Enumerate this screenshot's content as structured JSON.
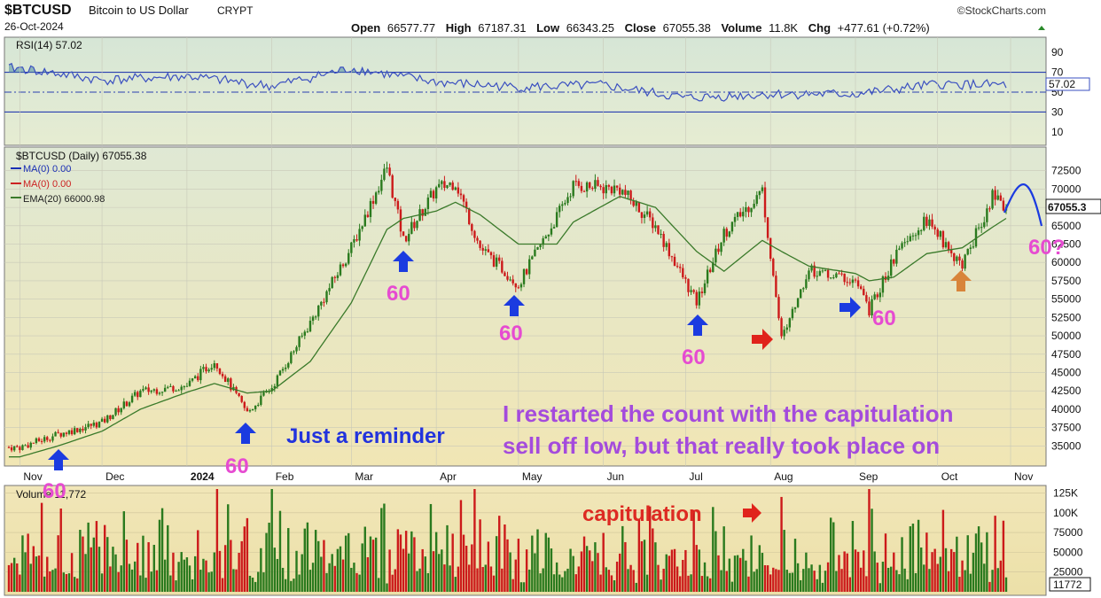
{
  "header": {
    "symbol": "$BTCUSD",
    "name": "Bitcoin to US Dollar",
    "exchange": "CRYPT",
    "date": "26-Oct-2024",
    "brand": "©StockCharts.com",
    "ohlc": [
      {
        "label": "Open",
        "value": "66577.77"
      },
      {
        "label": "High",
        "value": "67187.31"
      },
      {
        "label": "Low",
        "value": "66343.25"
      },
      {
        "label": "Close",
        "value": "67055.38"
      },
      {
        "label": "Volume",
        "value": "11.8K"
      },
      {
        "label": "Chg",
        "value": "+477.61 (+0.72%)"
      }
    ]
  },
  "chart_data": [
    {
      "type": "line",
      "title": "RSI(14) 57.02",
      "current": "57.02",
      "ylim": [
        0,
        100
      ],
      "ticks": [
        "90",
        "70",
        "50",
        "30",
        "10"
      ],
      "levels": [
        70,
        50,
        30
      ],
      "x": [
        "Nov 2023",
        "Dec 2023",
        "Jan 2024",
        "Feb 2024",
        "Mar 2024",
        "Apr 2024",
        "May 2024",
        "Jun 2024",
        "Jul 2024",
        "Aug 2024",
        "Sep 2024",
        "Oct 2024",
        "Nov 2024"
      ],
      "series": [
        {
          "name": "RSI(14)",
          "values": [
            74,
            62,
            66,
            56,
            74,
            60,
            55,
            57,
            44,
            48,
            48,
            58,
            57
          ]
        }
      ]
    },
    {
      "type": "line",
      "title": "$BTCUSD (Daily) 67055.38",
      "legend": [
        "MA(0) 0.00",
        "MA(0) 0.00",
        "EMA(20) 66000.98"
      ],
      "legend_colors": [
        "#1a2fb4",
        "#cc2222",
        "#3a7a2a"
      ],
      "current": "67055.3",
      "ylim": [
        32500,
        75000
      ],
      "ticks": [
        "72500",
        "70000",
        "67500",
        "65000",
        "62500",
        "60000",
        "57500",
        "55000",
        "52500",
        "50000",
        "47500",
        "45000",
        "42500",
        "40000",
        "37500",
        "35000"
      ],
      "x_labels": [
        "Nov",
        "Dec",
        "2024",
        "Feb",
        "Mar",
        "Apr",
        "May",
        "Jun",
        "Jul",
        "Aug",
        "Sep",
        "Oct",
        "Nov"
      ],
      "x": [
        "2023-11-01",
        "2023-11-15",
        "2023-12-01",
        "2023-12-15",
        "2024-01-01",
        "2024-01-11",
        "2024-01-23",
        "2024-02-01",
        "2024-02-15",
        "2024-03-01",
        "2024-03-14",
        "2024-03-20",
        "2024-04-01",
        "2024-04-08",
        "2024-04-17",
        "2024-05-01",
        "2024-05-15",
        "2024-05-21",
        "2024-06-07",
        "2024-06-20",
        "2024-07-05",
        "2024-07-15",
        "2024-07-29",
        "2024-08-05",
        "2024-08-15",
        "2024-09-01",
        "2024-09-06",
        "2024-09-15",
        "2024-09-27",
        "2024-10-10",
        "2024-10-21",
        "2024-10-26"
      ],
      "series": [
        {
          "name": "$BTCUSD",
          "values": [
            34800,
            36600,
            38200,
            42400,
            43200,
            46600,
            39500,
            43000,
            51800,
            62000,
            73000,
            63000,
            70000,
            71000,
            62000,
            57000,
            66200,
            70500,
            70000,
            65000,
            54500,
            64000,
            69800,
            49500,
            59000,
            57500,
            53500,
            60500,
            65800,
            59500,
            69000,
            67055
          ]
        },
        {
          "name": "EMA(20)",
          "values": [
            33500,
            35000,
            37000,
            40000,
            42300,
            43500,
            42200,
            42500,
            46500,
            54500,
            64500,
            66000,
            67000,
            68200,
            66500,
            62500,
            62500,
            65500,
            69000,
            67500,
            61500,
            58800,
            63000,
            61500,
            59500,
            58500,
            57500,
            58000,
            61200,
            62000,
            64800,
            66000
          ]
        }
      ]
    },
    {
      "type": "bar",
      "title": "Volume 11,772",
      "current": "11772",
      "ylim": [
        0,
        130000
      ],
      "ticks": [
        "125K",
        "100K",
        "75000",
        "50000",
        "25000"
      ],
      "spike_value": 120000,
      "typical_values": [
        30000,
        45000,
        60000,
        75000,
        95000
      ]
    }
  ],
  "annotations": {
    "marker_label": "60",
    "marker_label_q": "60?",
    "reminder": "Just a reminder",
    "note_line1": "I restarted the count with the capitulation",
    "note_line2": "sell off low, but that really took place on",
    "capitulation": "capitulation"
  },
  "colors": {
    "up": "#2a7a1e",
    "down": "#cc1a1a",
    "rsi_line": "#3a4fc0",
    "ema": "#3a7a2a",
    "arrow_blue": "#1b3be0",
    "arrow_red": "#e0231b",
    "arrow_orange": "#d8843a",
    "label_pink": "#e64bd1",
    "text_blue": "#2233dd",
    "text_purple": "#a44bdc",
    "text_red": "#dd2a22"
  }
}
